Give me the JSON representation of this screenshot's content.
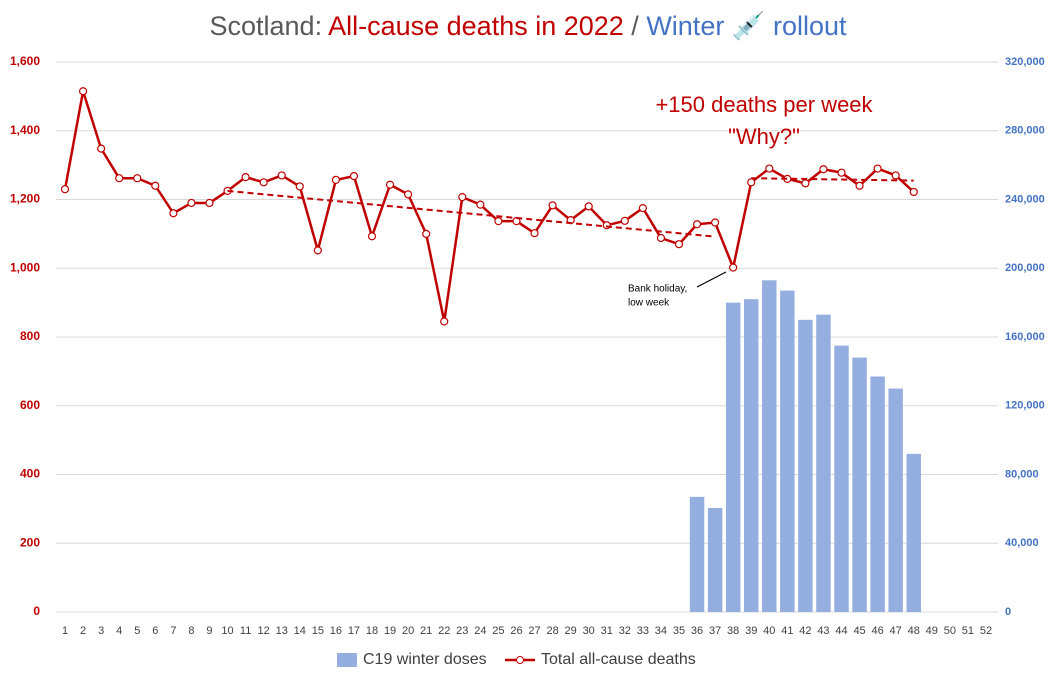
{
  "chart_data": {
    "type": "bar-line",
    "title": [
      {
        "text": "Scotland: ",
        "color": "#595959"
      },
      {
        "text": "All-cause deaths in 2022",
        "color": "#c00000"
      },
      {
        "text": " / ",
        "color": "#595959"
      },
      {
        "text": "Winter ",
        "color": "#4472c4"
      },
      {
        "text": "💉",
        "color": "#4472c4"
      },
      {
        "text": " rollout",
        "color": "#4472c4"
      }
    ],
    "categories": [
      "1",
      "2",
      "3",
      "4",
      "5",
      "6",
      "7",
      "8",
      "9",
      "10",
      "11",
      "12",
      "13",
      "14",
      "15",
      "16",
      "17",
      "18",
      "19",
      "20",
      "21",
      "22",
      "23",
      "24",
      "25",
      "26",
      "27",
      "28",
      "29",
      "30",
      "31",
      "32",
      "33",
      "34",
      "35",
      "36",
      "37",
      "38",
      "39",
      "40",
      "41",
      "42",
      "43",
      "44",
      "45",
      "46",
      "47",
      "48",
      "49",
      "50",
      "51",
      "52"
    ],
    "series": [
      {
        "name": "C19 winter doses",
        "type": "bar",
        "axis": "y2",
        "color": "#94aee0",
        "values": [
          null,
          null,
          null,
          null,
          null,
          null,
          null,
          null,
          null,
          null,
          null,
          null,
          null,
          null,
          null,
          null,
          null,
          null,
          null,
          null,
          null,
          null,
          null,
          null,
          null,
          null,
          null,
          null,
          null,
          null,
          null,
          null,
          null,
          null,
          null,
          67000,
          60500,
          180000,
          182000,
          193000,
          187000,
          170000,
          173000,
          155000,
          148000,
          137000,
          130000,
          92000,
          null,
          null,
          null,
          null
        ]
      },
      {
        "name": "Total all-cause deaths",
        "type": "line",
        "axis": "y",
        "color": "#c00000",
        "values": [
          1230,
          1515,
          1348,
          1262,
          1262,
          1240,
          1160,
          1190,
          1190,
          1225,
          1265,
          1250,
          1270,
          1238,
          1052,
          1257,
          1268,
          1093,
          1243,
          1215,
          1100,
          845,
          1207,
          1185,
          1137,
          1137,
          1102,
          1183,
          1140,
          1180,
          1125,
          1138,
          1175,
          1088,
          1070,
          1128,
          1133,
          1002,
          1250,
          1290,
          1260,
          1247,
          1288,
          1278,
          1240,
          1290,
          1270,
          1222,
          null,
          null,
          null,
          null
        ]
      }
    ],
    "trendlines": [
      {
        "x": [
          10,
          37
        ],
        "y": [
          1225,
          1092
        ]
      },
      {
        "x": [
          39,
          48
        ],
        "y": [
          1262,
          1255
        ]
      }
    ],
    "annotations": [
      {
        "lines": [
          "+150 deaths per week",
          "\"Why?\""
        ],
        "color": "#c00000"
      },
      {
        "lines": [
          "Bank holiday,",
          "low week"
        ],
        "color": "#000000"
      }
    ],
    "ylim": [
      0,
      1600
    ],
    "yticks": [
      0,
      200,
      400,
      600,
      800,
      {
        "value": 1000,
        "label": "1,000"
      },
      {
        "value": 1200,
        "label": "1,200"
      },
      {
        "value": 1400,
        "label": "1,400"
      },
      {
        "value": 1600,
        "label": "1,600"
      }
    ],
    "y2lim": [
      0,
      320000
    ],
    "y2ticks": [
      0,
      {
        "value": 40000,
        "label": "40,000"
      },
      {
        "value": 80000,
        "label": "80,000"
      },
      {
        "value": 120000,
        "label": "120,000"
      },
      {
        "value": 160000,
        "label": "160,000"
      },
      {
        "value": 200000,
        "label": "200,000"
      },
      {
        "value": 240000,
        "label": "240,000"
      },
      {
        "value": 280000,
        "label": "280,000"
      },
      {
        "value": 320000,
        "label": "320,000"
      }
    ],
    "grid": true,
    "legend": "bottom"
  }
}
